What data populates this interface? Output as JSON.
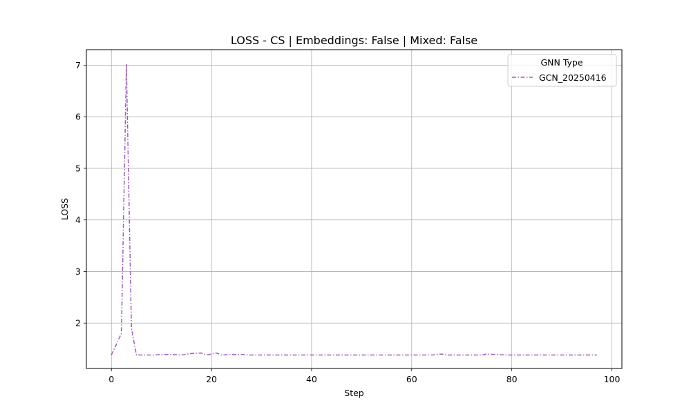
{
  "chart_data": {
    "type": "line",
    "title": "LOSS - CS | Embeddings: False | Mixed: False",
    "xlabel": "Step",
    "ylabel": "LOSS",
    "xlim": [
      -5,
      102
    ],
    "ylim": [
      1.12,
      7.3
    ],
    "xticks": [
      0,
      20,
      40,
      60,
      80,
      100
    ],
    "yticks": [
      2,
      3,
      4,
      5,
      6,
      7
    ],
    "grid": true,
    "legend": {
      "title": "GNN Type",
      "placement": "top-right"
    },
    "series": [
      {
        "name": "GCN_20250416",
        "color": "#9c5bc6",
        "linestyle": "dash-dot",
        "x": [
          0,
          2,
          3,
          4,
          5,
          6,
          8,
          10,
          12,
          14,
          16,
          18,
          19,
          21,
          22,
          24,
          26,
          28,
          30,
          35,
          40,
          45,
          50,
          55,
          60,
          64,
          66,
          67,
          69,
          72,
          74,
          75,
          77,
          79,
          84,
          97
        ],
        "y": [
          1.38,
          1.8,
          7.02,
          1.9,
          1.38,
          1.38,
          1.38,
          1.39,
          1.39,
          1.38,
          1.41,
          1.42,
          1.38,
          1.42,
          1.38,
          1.39,
          1.39,
          1.38,
          1.38,
          1.38,
          1.38,
          1.38,
          1.38,
          1.38,
          1.38,
          1.38,
          1.4,
          1.38,
          1.38,
          1.38,
          1.38,
          1.4,
          1.39,
          1.38,
          1.38,
          1.38
        ]
      }
    ]
  }
}
